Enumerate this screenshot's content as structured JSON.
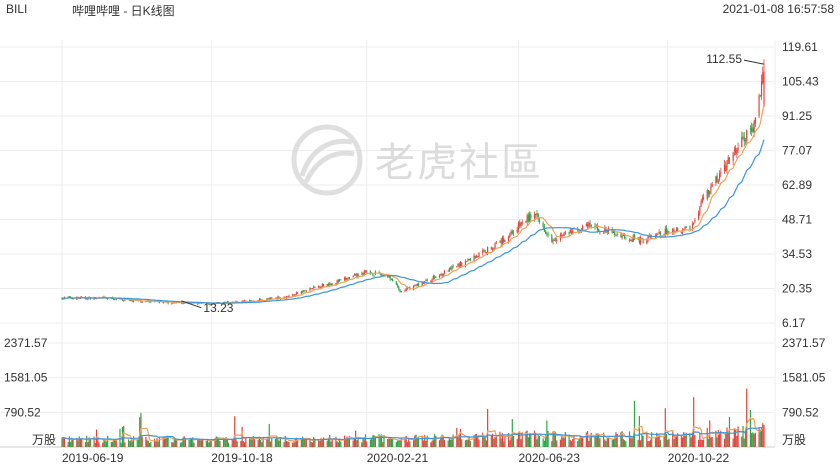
{
  "header": {
    "ticker": "BILI",
    "name": "哔哩哔哩 - 日K线图",
    "timestamp": "2021-01-08 16:57:58"
  },
  "watermark": "老虎社區",
  "colors": {
    "up": "#e8413c",
    "down": "#2aa84a",
    "ma_orange": "#f0a15a",
    "ma_blue": "#3d95d8",
    "grid": "#eeeeee",
    "axis": "#cccccc"
  },
  "chart_data": [
    {
      "type": "candlestick",
      "price_axis_labels": [
        "119.61",
        "105.43",
        "91.25",
        "77.07",
        "62.89",
        "48.71",
        "34.53",
        "20.35",
        "6.17"
      ],
      "ylim": [
        6.17,
        119.61
      ],
      "x_tick_labels": [
        "2019-06-19",
        "2019-10-18",
        "2020-02-21",
        "2020-06-23",
        "2020-10-22"
      ],
      "date_range": [
        "2019-06-19",
        "2021-01-08"
      ],
      "annotations": {
        "max_label": "112.55",
        "min_label": "13.23"
      },
      "approx_close_path": [
        {
          "x": "2019-06-19",
          "y": 16.5
        },
        {
          "x": "2019-07-25",
          "y": 16.3
        },
        {
          "x": "2019-08-30",
          "y": 14.8
        },
        {
          "x": "2019-10-10",
          "y": 14.2
        },
        {
          "x": "2019-10-18",
          "y": 14.0
        },
        {
          "x": "2019-11-20",
          "y": 15.3
        },
        {
          "x": "2019-12-20",
          "y": 17.2
        },
        {
          "x": "2020-01-15",
          "y": 21.5
        },
        {
          "x": "2020-01-31",
          "y": 23.5
        },
        {
          "x": "2020-02-21",
          "y": 27.0
        },
        {
          "x": "2020-03-10",
          "y": 25.5
        },
        {
          "x": "2020-03-19",
          "y": 19.0
        },
        {
          "x": "2020-04-10",
          "y": 23.5
        },
        {
          "x": "2020-05-10",
          "y": 31.0
        },
        {
          "x": "2020-06-10",
          "y": 40.0
        },
        {
          "x": "2020-06-23",
          "y": 46.0
        },
        {
          "x": "2020-07-05",
          "y": 51.0
        },
        {
          "x": "2020-07-20",
          "y": 41.0
        },
        {
          "x": "2020-08-20",
          "y": 46.0
        },
        {
          "x": "2020-09-15",
          "y": 42.0
        },
        {
          "x": "2020-10-01",
          "y": 40.0
        },
        {
          "x": "2020-10-22",
          "y": 44.0
        },
        {
          "x": "2020-11-10",
          "y": 45.5
        },
        {
          "x": "2020-11-20",
          "y": 58.0
        },
        {
          "x": "2020-12-05",
          "y": 68.0
        },
        {
          "x": "2020-12-20",
          "y": 80.0
        },
        {
          "x": "2021-01-01",
          "y": 88.0
        },
        {
          "x": "2021-01-08",
          "y": 112.55
        }
      ]
    },
    {
      "type": "bar",
      "volume_axis_labels": [
        "2371.57",
        "1581.05",
        "790.52"
      ],
      "unit_label": "万股",
      "ylim": [
        0,
        2371.57
      ]
    }
  ]
}
